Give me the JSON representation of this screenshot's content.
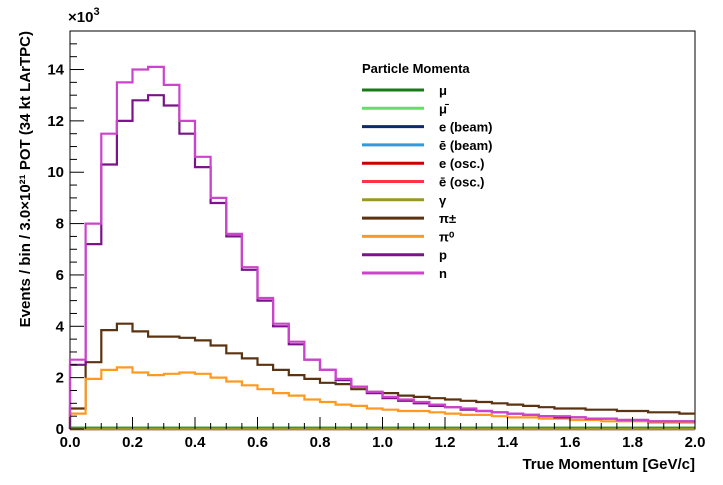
{
  "chart_data": {
    "type": "line",
    "title": "",
    "xlabel": "True Momentum [GeV/c]",
    "ylabel": "Events / bin / 3.0×10²¹ POT (34 kt LArTPC)",
    "y_multiplier_base": "×10",
    "y_multiplier_exp": "3",
    "xlim": [
      0,
      2.0
    ],
    "ylim": [
      0,
      15500
    ],
    "grid": false,
    "legend_title": "Particle Momenta",
    "legend_position": "top-right",
    "x_ticks": [
      "0.0",
      "0.2",
      "0.4",
      "0.6",
      "0.8",
      "1.0",
      "1.2",
      "1.4",
      "1.6",
      "1.8",
      "2.0"
    ],
    "y_ticks": [
      "0",
      "2",
      "4",
      "6",
      "8",
      "10",
      "12",
      "14"
    ],
    "x_edges": [
      0,
      0.05,
      0.1,
      0.15,
      0.2,
      0.25,
      0.3,
      0.35,
      0.4,
      0.45,
      0.5,
      0.55,
      0.6,
      0.65,
      0.7,
      0.75,
      0.8,
      0.85,
      0.9,
      0.95,
      1.0,
      1.05,
      1.1,
      1.15,
      1.2,
      1.25,
      1.3,
      1.35,
      1.4,
      1.45,
      1.5,
      1.55,
      1.6,
      1.65,
      1.7,
      1.75,
      1.8,
      1.85,
      1.9,
      1.95,
      2.0
    ],
    "series": [
      {
        "name": "μ",
        "color": "#1a7a1a",
        "values": [
          50,
          50,
          50,
          50,
          50,
          50,
          50,
          50,
          50,
          50,
          50,
          50,
          50,
          50,
          50,
          50,
          50,
          50,
          50,
          50,
          50,
          50,
          50,
          50,
          50,
          50,
          50,
          50,
          50,
          50,
          50,
          50,
          50,
          50,
          50,
          50,
          50,
          50,
          50,
          50
        ]
      },
      {
        "name": "μ̄",
        "color": "#66dd66",
        "values": [
          20,
          20,
          20,
          20,
          20,
          20,
          20,
          20,
          20,
          20,
          20,
          20,
          20,
          20,
          20,
          20,
          20,
          20,
          20,
          20,
          20,
          20,
          20,
          20,
          20,
          20,
          20,
          20,
          20,
          20,
          20,
          20,
          20,
          20,
          20,
          20,
          20,
          20,
          20,
          20
        ]
      },
      {
        "name": "e (beam)",
        "color": "#0d2a6e",
        "values": [
          0,
          0,
          0,
          0,
          0,
          0,
          0,
          0,
          0,
          0,
          0,
          0,
          0,
          0,
          0,
          0,
          0,
          0,
          0,
          0,
          0,
          0,
          0,
          0,
          0,
          0,
          0,
          0,
          0,
          0,
          0,
          0,
          0,
          0,
          0,
          0,
          0,
          0,
          0,
          0
        ]
      },
      {
        "name": "ē (beam)",
        "color": "#3399dd",
        "values": [
          0,
          0,
          0,
          0,
          0,
          0,
          0,
          0,
          0,
          0,
          0,
          0,
          0,
          0,
          0,
          0,
          0,
          0,
          0,
          0,
          0,
          0,
          0,
          0,
          0,
          0,
          0,
          0,
          0,
          0,
          0,
          0,
          0,
          0,
          0,
          0,
          0,
          0,
          0,
          0
        ]
      },
      {
        "name": "e (osc.)",
        "color": "#cc0000",
        "values": [
          0,
          0,
          0,
          0,
          0,
          0,
          0,
          0,
          0,
          0,
          0,
          0,
          0,
          0,
          0,
          0,
          0,
          0,
          0,
          0,
          0,
          0,
          0,
          0,
          0,
          0,
          0,
          0,
          0,
          0,
          0,
          0,
          0,
          0,
          0,
          0,
          0,
          0,
          0,
          0
        ]
      },
      {
        "name": "ē (osc.)",
        "color": "#ff3344",
        "values": [
          0,
          0,
          0,
          0,
          0,
          0,
          0,
          0,
          0,
          0,
          0,
          0,
          0,
          0,
          0,
          0,
          0,
          0,
          0,
          0,
          0,
          0,
          0,
          0,
          0,
          0,
          0,
          0,
          0,
          0,
          0,
          0,
          0,
          0,
          0,
          0,
          0,
          0,
          0,
          0
        ]
      },
      {
        "name": "γ",
        "color": "#999922",
        "values": [
          0,
          0,
          0,
          0,
          0,
          0,
          0,
          0,
          0,
          0,
          0,
          0,
          0,
          0,
          0,
          0,
          0,
          0,
          0,
          0,
          0,
          0,
          0,
          0,
          0,
          0,
          0,
          0,
          0,
          0,
          0,
          0,
          0,
          0,
          0,
          0,
          0,
          0,
          0,
          0
        ]
      },
      {
        "name": "π±",
        "color": "#5c3310",
        "values": [
          800,
          2600,
          3850,
          4100,
          3800,
          3600,
          3600,
          3550,
          3450,
          3250,
          2950,
          2750,
          2500,
          2300,
          2100,
          1950,
          1800,
          1750,
          1550,
          1450,
          1400,
          1300,
          1250,
          1200,
          1150,
          1100,
          1050,
          1000,
          950,
          900,
          850,
          800,
          800,
          750,
          750,
          700,
          700,
          650,
          650,
          600
        ]
      },
      {
        "name": "π⁰",
        "color": "#ff9922",
        "values": [
          600,
          1950,
          2300,
          2400,
          2200,
          2100,
          2150,
          2200,
          2150,
          2000,
          1850,
          1700,
          1550,
          1400,
          1300,
          1150,
          1050,
          950,
          900,
          800,
          750,
          700,
          700,
          650,
          600,
          550,
          550,
          500,
          450,
          450,
          400,
          400,
          350,
          350,
          300,
          300,
          300,
          250,
          250,
          250
        ]
      },
      {
        "name": "p",
        "color": "#7a1488",
        "values": [
          2500,
          7200,
          10300,
          12000,
          12800,
          13000,
          12600,
          11500,
          10200,
          8800,
          7500,
          6200,
          5000,
          4000,
          3300,
          2700,
          2300,
          1900,
          1650,
          1400,
          1200,
          1100,
          1000,
          900,
          850,
          750,
          700,
          650,
          600,
          550,
          500,
          450,
          450,
          400,
          400,
          350,
          350,
          300,
          300,
          300
        ]
      },
      {
        "name": "n",
        "color": "#cc44cc",
        "values": [
          2700,
          8000,
          11500,
          13500,
          14000,
          14100,
          13400,
          12000,
          10600,
          9000,
          7600,
          6300,
          5100,
          4100,
          3400,
          2700,
          2300,
          1950,
          1650,
          1450,
          1250,
          1150,
          1050,
          950,
          850,
          800,
          700,
          650,
          600,
          550,
          500,
          500,
          450,
          400,
          400,
          350,
          350,
          300,
          300,
          300
        ]
      }
    ]
  }
}
